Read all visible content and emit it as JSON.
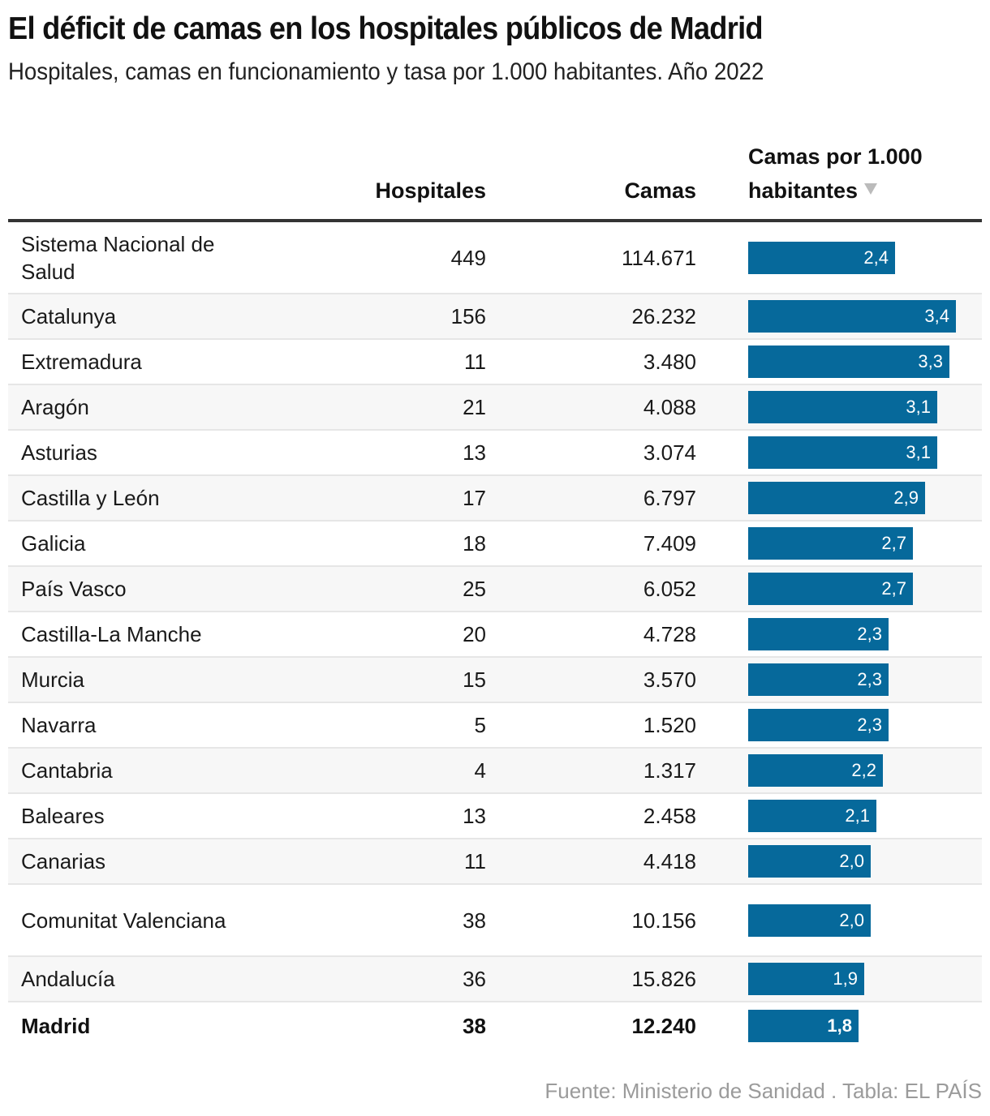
{
  "header": {
    "title": "El déficit de camas en los hospitales públicos de Madrid",
    "subtitle": "Hospitales, camas en funcionamiento y tasa por 1.000 habitantes. Año 2022"
  },
  "columns": {
    "name": "",
    "hospitales": "Hospitales",
    "camas": "Camas",
    "rate_line1": "Camas por 1.000",
    "rate_line2": "habitantes",
    "sort_icon": "sort-descending-triangle-icon"
  },
  "colors": {
    "bar": "#06699b",
    "shade": "#f7f7f7",
    "border": "#e6e6e6",
    "footer": "#9b9b9b"
  },
  "rows": [
    {
      "name": "Sistema Nacional de Salud",
      "hospitales": "449",
      "camas": "114.671",
      "rate_label": "2,4",
      "rate": 2.4
    },
    {
      "name": "Catalunya",
      "hospitales": "156",
      "camas": "26.232",
      "rate_label": "3,4",
      "rate": 3.4
    },
    {
      "name": "Extremadura",
      "hospitales": "11",
      "camas": "3.480",
      "rate_label": "3,3",
      "rate": 3.3
    },
    {
      "name": "Aragón",
      "hospitales": "21",
      "camas": "4.088",
      "rate_label": "3,1",
      "rate": 3.1
    },
    {
      "name": "Asturias",
      "hospitales": "13",
      "camas": "3.074",
      "rate_label": "3,1",
      "rate": 3.1
    },
    {
      "name": "Castilla y León",
      "hospitales": "17",
      "camas": "6.797",
      "rate_label": "2,9",
      "rate": 2.9
    },
    {
      "name": "Galicia",
      "hospitales": "18",
      "camas": "7.409",
      "rate_label": "2,7",
      "rate": 2.7
    },
    {
      "name": "País Vasco",
      "hospitales": "25",
      "camas": "6.052",
      "rate_label": "2,7",
      "rate": 2.7
    },
    {
      "name": "Castilla-La Manche",
      "hospitales": "20",
      "camas": "4.728",
      "rate_label": "2,3",
      "rate": 2.3
    },
    {
      "name": "Murcia",
      "hospitales": "15",
      "camas": "3.570",
      "rate_label": "2,3",
      "rate": 2.3
    },
    {
      "name": "Navarra",
      "hospitales": "5",
      "camas": "1.520",
      "rate_label": "2,3",
      "rate": 2.3
    },
    {
      "name": "Cantabria",
      "hospitales": "4",
      "camas": "1.317",
      "rate_label": "2,2",
      "rate": 2.2
    },
    {
      "name": "Baleares",
      "hospitales": "13",
      "camas": "2.458",
      "rate_label": "2,1",
      "rate": 2.1
    },
    {
      "name": "Canarias",
      "hospitales": "11",
      "camas": "4.418",
      "rate_label": "2,0",
      "rate": 2.0
    },
    {
      "name": "Comunitat Valenciana",
      "hospitales": "38",
      "camas": "10.156",
      "rate_label": "2,0",
      "rate": 2.0
    },
    {
      "name": "Andalucía",
      "hospitales": "36",
      "camas": "15.826",
      "rate_label": "1,9",
      "rate": 1.9
    },
    {
      "name": "Madrid",
      "hospitales": "38",
      "camas": "12.240",
      "rate_label": "1,8",
      "rate": 1.8,
      "highlight": true
    }
  ],
  "footer": {
    "source": "Fuente: Ministerio de Sanidad . Tabla: EL PAÍS"
  },
  "chart_data": {
    "type": "table",
    "title": "El déficit de camas en los hospitales públicos de Madrid",
    "subtitle": "Hospitales, camas en funcionamiento y tasa por 1.000 habitantes. Año 2022",
    "columns": [
      "",
      "Hospitales",
      "Camas",
      "Camas por 1.000 habitantes"
    ],
    "sorted_by": "Camas por 1.000 habitantes",
    "categories": [
      "Sistema Nacional de Salud",
      "Catalunya",
      "Extremadura",
      "Aragón",
      "Asturias",
      "Castilla y León",
      "Galicia",
      "País Vasco",
      "Castilla-La Manche",
      "Murcia",
      "Navarra",
      "Cantabria",
      "Baleares",
      "Canarias",
      "Comunitat Valenciana",
      "Andalucía",
      "Madrid"
    ],
    "series": [
      {
        "name": "Hospitales",
        "values": [
          449,
          156,
          11,
          21,
          13,
          17,
          18,
          25,
          20,
          15,
          5,
          4,
          13,
          11,
          38,
          36,
          38
        ]
      },
      {
        "name": "Camas",
        "values": [
          114671,
          26232,
          3480,
          4088,
          3074,
          6797,
          7409,
          6052,
          4728,
          3570,
          1520,
          1317,
          2458,
          4418,
          10156,
          15826,
          12240
        ]
      },
      {
        "name": "Camas por 1.000 habitantes",
        "values": [
          2.4,
          3.4,
          3.3,
          3.1,
          3.1,
          2.9,
          2.7,
          2.7,
          2.3,
          2.3,
          2.3,
          2.2,
          2.1,
          2.0,
          2.0,
          1.9,
          1.8
        ]
      }
    ],
    "bar_scale": [
      0,
      3.4
    ],
    "source": "Fuente: Ministerio de Sanidad . Tabla: EL PAÍS"
  }
}
